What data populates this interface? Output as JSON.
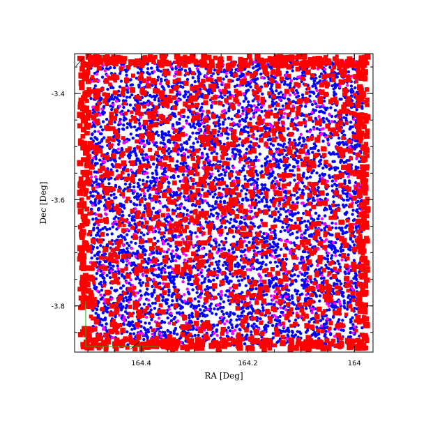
{
  "chart_data": {
    "type": "scatter",
    "title": "",
    "xlabel": "RA [Deg]",
    "ylabel": "Dec [Deg]",
    "x_reversed": true,
    "xlim": [
      164.525,
      163.965
    ],
    "ylim": [
      -3.887,
      -3.325
    ],
    "x_ticks": [
      164.4,
      164.2,
      164.0
    ],
    "x_tick_labels": [
      "164.4",
      "164.2",
      "164"
    ],
    "y_ticks": [
      -3.4,
      -3.6,
      -3.8
    ],
    "y_tick_labels": [
      "-3.4",
      "-3.6",
      "-3.8"
    ],
    "grid": false,
    "legend": "none",
    "series": [
      {
        "color": "#0000ff",
        "marker": "dot",
        "density": "high",
        "region": {
          "ra": [
            164.495,
            163.985
          ],
          "dec": [
            -3.875,
            -3.338
          ]
        }
      },
      {
        "color": "#ff00ff",
        "marker": "dot",
        "density": "low",
        "region": {
          "ra": [
            164.495,
            163.985
          ],
          "dec": [
            -3.875,
            -3.338
          ]
        }
      },
      {
        "color": "#ff0000",
        "marker": "square",
        "density": "medium",
        "region": {
          "ra": [
            164.515,
            163.975
          ],
          "dec": [
            -3.882,
            -3.33
          ]
        },
        "note_border_band": true
      }
    ],
    "footprint_color": "#00bb00",
    "frame_marker_color": "#000000"
  }
}
